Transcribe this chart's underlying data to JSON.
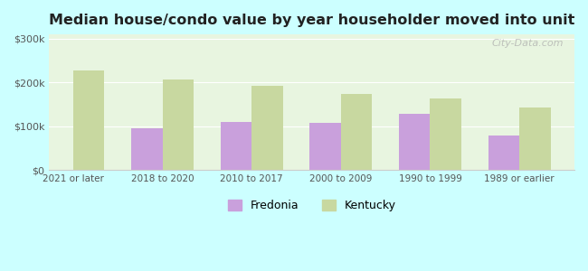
{
  "title": "Median house/condo value by year householder moved into unit",
  "categories": [
    "2021 or later",
    "2018 to 2020",
    "2010 to 2017",
    "2000 to 2009",
    "1990 to 1999",
    "1989 or earlier"
  ],
  "fredonia_values": [
    null,
    95000,
    110000,
    108000,
    128000,
    80000
  ],
  "kentucky_values": [
    228000,
    207000,
    193000,
    175000,
    163000,
    143000
  ],
  "fredonia_color": "#c9a0dc",
  "kentucky_color": "#c8d8a0",
  "background_color": "#ccffff",
  "plot_bg_top": "#e8f5e0",
  "plot_bg_bottom": "#f0f8e8",
  "ylabel_ticks": [
    "$0",
    "$100k",
    "$200k",
    "$300k"
  ],
  "ytick_values": [
    0,
    100000,
    200000,
    300000
  ],
  "ylim": [
    0,
    310000
  ],
  "bar_width": 0.35,
  "watermark": "City-Data.com",
  "legend_fredonia": "Fredonia",
  "legend_kentucky": "Kentucky"
}
